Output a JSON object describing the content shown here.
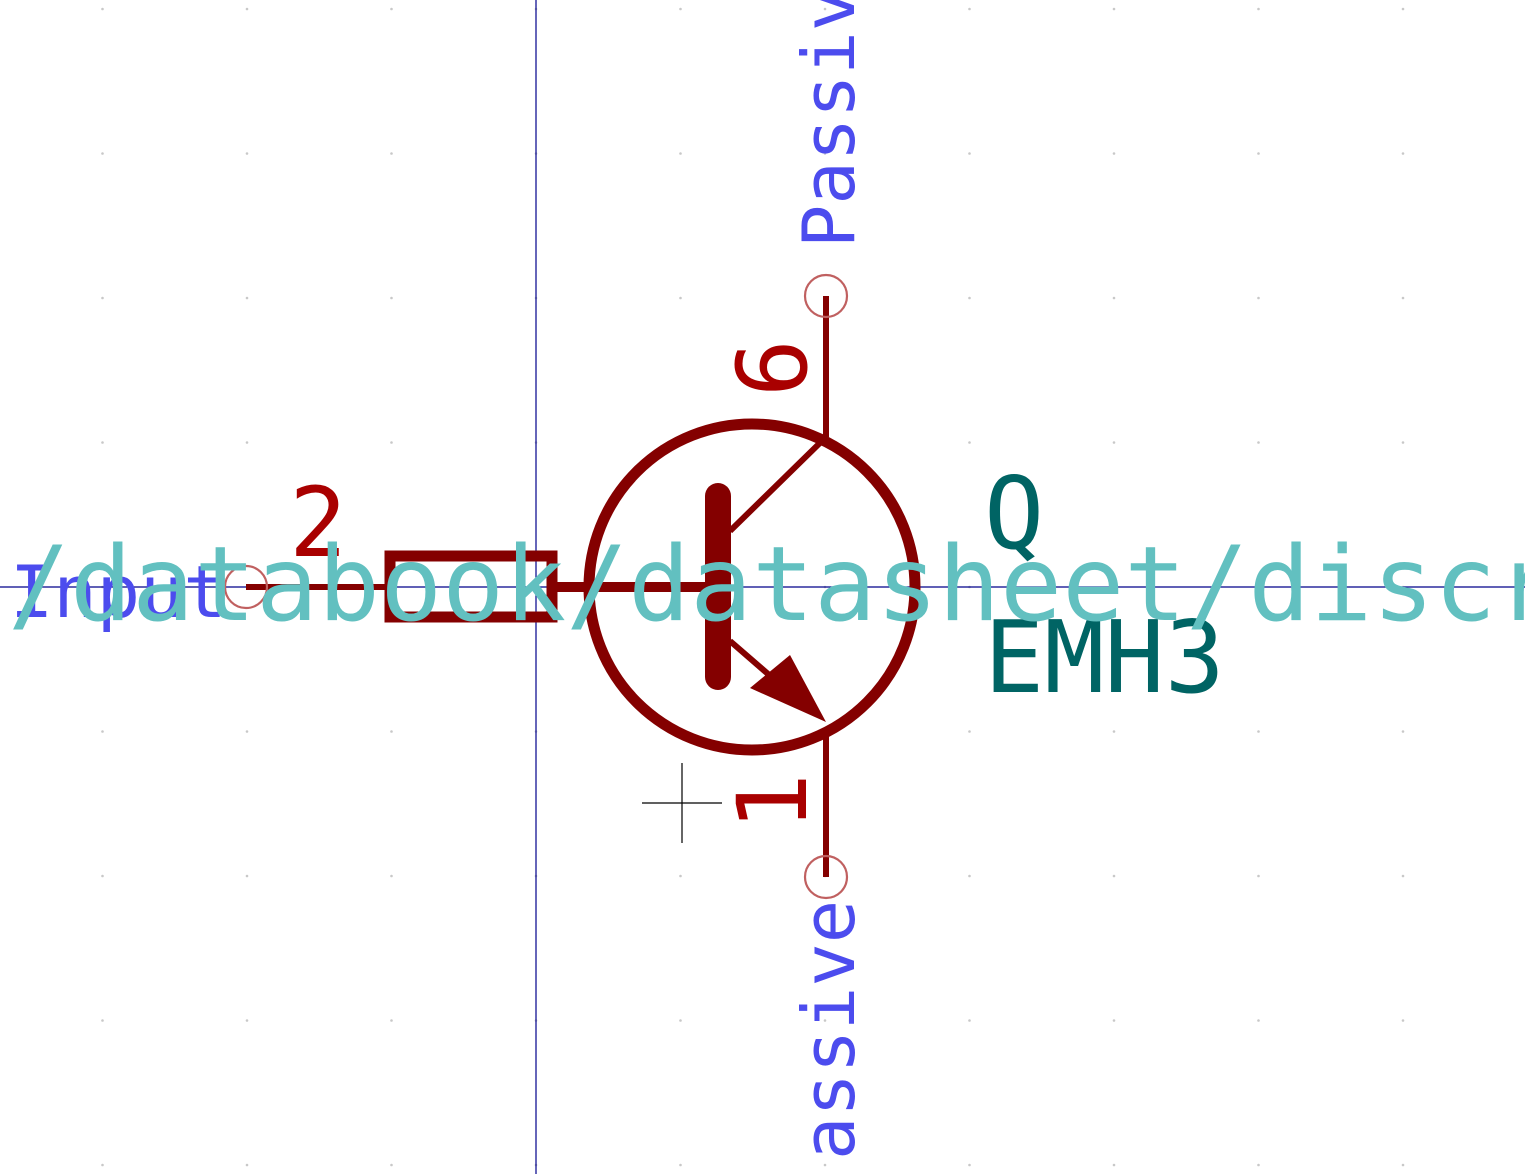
{
  "colors": {
    "background": "#ffffff",
    "grid_dot": "#c8c8c8",
    "axis_line": "#00008b",
    "cursor": "#000000",
    "body": "#840000",
    "pin_number": "#a90000",
    "pin_end_circle": "#c06060",
    "pin_type": "#4c4cee",
    "ref_value": "#006464",
    "datasheet": "#62c0c0"
  },
  "symbol": {
    "reference": "Q",
    "value": "EMH3",
    "datasheet": "/databook/datasheet/discr",
    "kind": "NPN transistor with base resistor"
  },
  "pins": [
    {
      "id": "base",
      "number": "2",
      "type_label": "Input"
    },
    {
      "id": "collector",
      "number": "6",
      "type_label": "Passiv"
    },
    {
      "id": "emitter",
      "number": "1",
      "type_label": "assive"
    }
  ]
}
